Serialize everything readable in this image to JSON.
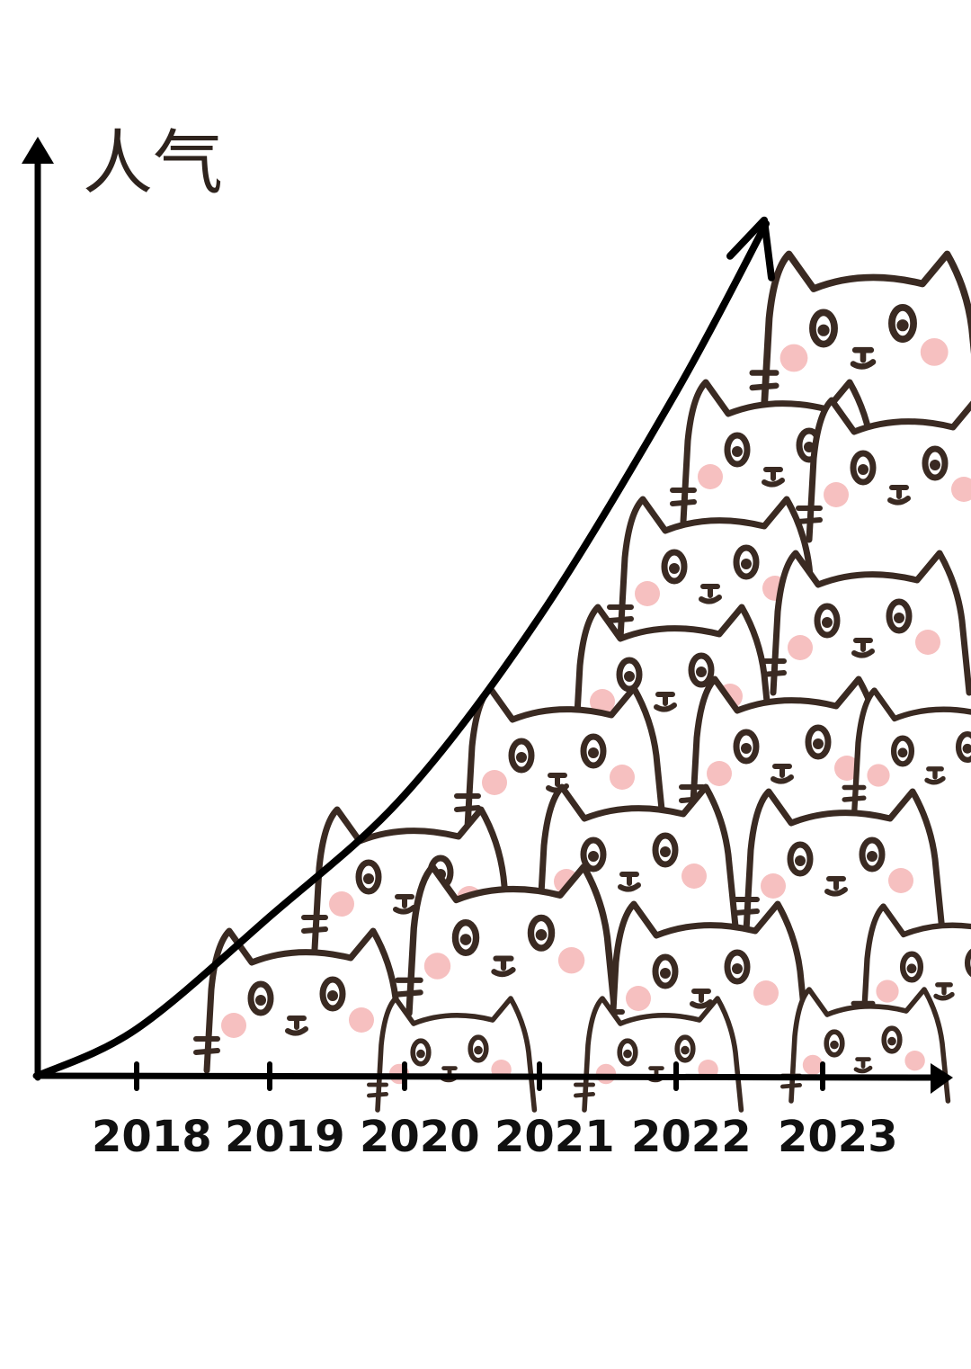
{
  "chart_data": {
    "type": "line",
    "title": "",
    "ylabel": "人气",
    "xlabel": "",
    "categories": [
      "2018",
      "2019",
      "2020",
      "2021",
      "2022",
      "2023"
    ],
    "series": [
      {
        "values": [
          5,
          17,
          30,
          49,
          73,
          91
        ]
      }
    ],
    "ylim": [
      0,
      100
    ],
    "y_ticks_shown": false,
    "grid": false,
    "legend": "none",
    "style": "hand-drawn",
    "colors": {
      "axis": "#000000",
      "curve": "#000000",
      "cat_outline": "#3a2a22",
      "cat_blush": "#f6c0c0"
    },
    "decoration": "pile of doodled cat heads filling the area under the curve"
  }
}
